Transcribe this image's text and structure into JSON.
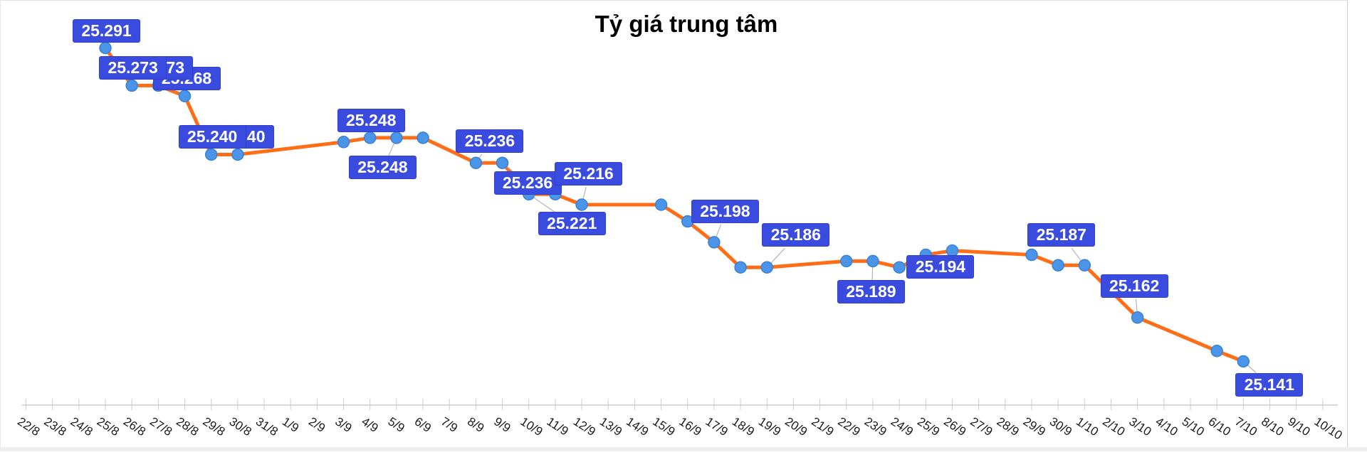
{
  "chart_data": {
    "type": "line",
    "title": "Tỷ giá trung tâm",
    "xlabel": "",
    "ylabel": "",
    "grid": false,
    "legend_position": "none",
    "ylim": [
      25.12,
      25.31
    ],
    "x_axis_dates": [
      "22/8",
      "23/8",
      "24/8",
      "25/8",
      "26/8",
      "27/8",
      "28/8",
      "29/8",
      "30/8",
      "31/8",
      "1/9",
      "2/9",
      "3/9",
      "4/9",
      "5/9",
      "6/9",
      "7/9",
      "8/9",
      "9/9",
      "10/9",
      "11/9",
      "12/9",
      "13/9",
      "14/9",
      "15/9",
      "16/9",
      "17/9",
      "18/9",
      "19/9",
      "20/9",
      "21/9",
      "22/9",
      "23/9",
      "24/9",
      "25/9",
      "26/9",
      "27/9",
      "28/9",
      "29/9",
      "30/9",
      "1/10",
      "2/10",
      "3/10",
      "4/10",
      "5/10",
      "6/10",
      "7/10",
      "8/10",
      "9/10",
      "10/10"
    ],
    "series": [
      {
        "name": "Tỷ giá trung tâm",
        "points": [
          {
            "date": "25/8",
            "value": 25.291,
            "label": "25.291",
            "label_offset": [
              -46,
              -41
            ],
            "leader": false,
            "z": 5
          },
          {
            "date": "26/8",
            "value": 25.273,
            "label": "25.273",
            "label_offset": [
              -46,
              -41
            ],
            "leader": false,
            "z": 5
          },
          {
            "date": "27/8",
            "value": 25.273,
            "label": "25.273",
            "label_offset": [
              -46,
              -41
            ],
            "leader": false,
            "z": 4
          },
          {
            "date": "28/8",
            "value": 25.268,
            "label": "25.268",
            "label_offset": [
              -45,
              -41
            ],
            "leader": false,
            "z": 3
          },
          {
            "date": "29/8",
            "value": 25.24,
            "label": "25.240",
            "label_offset": [
              -46,
              -41
            ],
            "leader": false,
            "z": 5
          },
          {
            "date": "30/8",
            "value": 25.24,
            "label": "25.240",
            "label_offset": [
              -44,
              -41
            ],
            "leader": false,
            "z": 4
          },
          {
            "date": "3/9",
            "value": 25.246,
            "label": null
          },
          {
            "date": "4/9",
            "value": 25.248,
            "label": "25.248",
            "label_offset": [
              -46,
              -41
            ],
            "leader": false,
            "z": 5
          },
          {
            "date": "5/9",
            "value": 25.248,
            "label": "25.248",
            "label_offset": [
              -67,
              25
            ],
            "leader": true,
            "z": 5
          },
          {
            "date": "6/9",
            "value": 25.248,
            "label": null
          },
          {
            "date": "8/9",
            "value": 25.236,
            "label": "25.236",
            "label_offset": [
              -28,
              -47
            ],
            "leader": true,
            "z": 5
          },
          {
            "date": "9/9",
            "value": 25.236,
            "label": "25.236",
            "label_offset": [
              -12,
              12
            ],
            "leader": true,
            "z": 5
          },
          {
            "date": "10/9",
            "value": 25.221,
            "label": "25.221",
            "label_offset": [
              13,
              25
            ],
            "leader": true,
            "z": 5
          },
          {
            "date": "11/9",
            "value": 25.221,
            "label": null
          },
          {
            "date": "12/9",
            "value": 25.216,
            "label": "25.216",
            "label_offset": [
              -38,
              -60
            ],
            "leader": true,
            "z": 5
          },
          {
            "date": "15/9",
            "value": 25.216,
            "label": null
          },
          {
            "date": "16/9",
            "value": 25.208,
            "label": null
          },
          {
            "date": "17/9",
            "value": 25.198,
            "label": "25.198",
            "label_offset": [
              -32,
              -60
            ],
            "leader": true,
            "z": 5
          },
          {
            "date": "18/9",
            "value": 25.186,
            "label": null
          },
          {
            "date": "19/9",
            "value": 25.186,
            "label": "25.186",
            "label_offset": [
              -7,
              -62
            ],
            "leader": true,
            "z": 5
          },
          {
            "date": "22/9",
            "value": 25.189,
            "label": null
          },
          {
            "date": "23/9",
            "value": 25.189,
            "label": "25.189",
            "label_offset": [
              -50,
              27
            ],
            "leader": true,
            "z": 5
          },
          {
            "date": "24/9",
            "value": 25.186,
            "label": null
          },
          {
            "date": "25/9",
            "value": 25.192,
            "label": null
          },
          {
            "date": "26/9",
            "value": 25.194,
            "label": "25.194",
            "label_offset": [
              -64,
              6
            ],
            "leader": false,
            "z": 5
          },
          {
            "date": "29/9",
            "value": 25.192,
            "label": null
          },
          {
            "date": "30/9",
            "value": 25.187,
            "label": null
          },
          {
            "date": "1/10",
            "value": 25.187,
            "label": "25.187",
            "label_offset": [
              -80,
              -59
            ],
            "leader": true,
            "z": 5
          },
          {
            "date": "3/10",
            "value": 25.162,
            "label": "25.162",
            "label_offset": [
              -52,
              -61
            ],
            "leader": true,
            "z": 5
          },
          {
            "date": "6/10",
            "value": 25.146,
            "label": null
          },
          {
            "date": "7/10",
            "value": 25.141,
            "label": "25.141",
            "label_offset": [
              -11,
              16
            ],
            "leader": true,
            "z": 5
          }
        ]
      }
    ],
    "colors": {
      "line": "#ff6e17",
      "marker_fill": "#4a95e8",
      "marker_border": "#3b80d4",
      "label_bg": "#3a4be0",
      "label_border": "#3240c8",
      "label_text": "#ffffff",
      "leader_line": "#b5b5b5",
      "axis_line": "#cccccc",
      "tick_label": "#1a1a1a",
      "title_color": "#000000"
    }
  }
}
